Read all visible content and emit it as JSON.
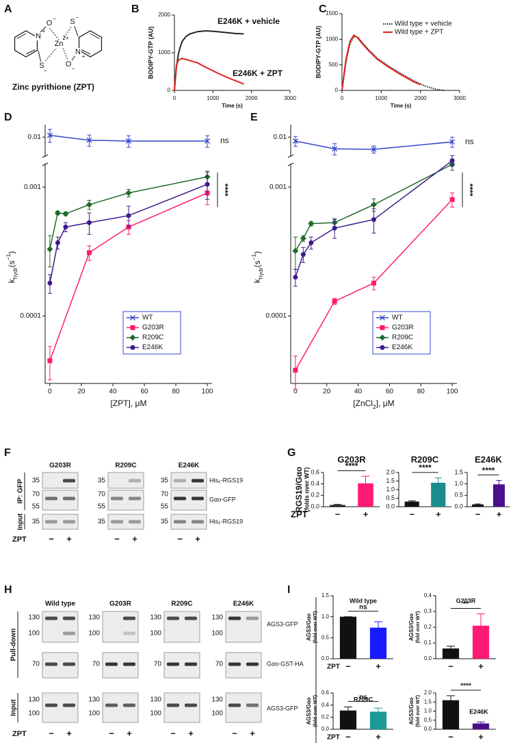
{
  "panel_labels": [
    "A",
    "B",
    "C",
    "D",
    "E",
    "F",
    "G",
    "H",
    "I"
  ],
  "structure": {
    "atoms": [
      {
        "symbol": "N",
        "charge": "+"
      },
      {
        "symbol": "O",
        "charge": "−"
      },
      {
        "symbol": "S",
        "charge": "−"
      },
      {
        "symbol": "Zn",
        "charge": "2+"
      },
      {
        "symbol": "S",
        "charge": "−"
      },
      {
        "symbol": "O",
        "charge": "−"
      },
      {
        "symbol": "N",
        "charge": "+"
      }
    ],
    "caption": "Zinc pyrithione (ZPT)"
  },
  "chart_data": [
    {
      "type": "line",
      "legend": "direct",
      "ylabel": "BODIPY-GTP (AU)",
      "xlabel": "Time (s)",
      "xlim": [
        0,
        3000
      ],
      "xticks": [
        0,
        1000,
        2000,
        3000
      ],
      "ylim": [
        0,
        2000
      ],
      "yticks": [
        0,
        1000,
        2000
      ],
      "label_color": "#5a1f6b",
      "series": [
        {
          "name": "E246K + vehicle",
          "color": "#222222",
          "x": [
            0,
            50,
            100,
            150,
            200,
            300,
            400,
            600,
            800,
            1000,
            1200,
            1400,
            1600,
            1800
          ],
          "values": [
            0,
            600,
            950,
            1150,
            1300,
            1430,
            1500,
            1560,
            1580,
            1570,
            1550,
            1530,
            1510,
            1500
          ]
        },
        {
          "name": "E246K + ZPT",
          "color": "#e0201b",
          "x": [
            0,
            50,
            100,
            200,
            300,
            400,
            600,
            800,
            1000,
            1200,
            1400,
            1600,
            1800
          ],
          "values": [
            0,
            650,
            800,
            850,
            820,
            790,
            730,
            620,
            520,
            420,
            330,
            250,
            170
          ]
        }
      ]
    },
    {
      "type": "line",
      "legend": "top-right",
      "ylabel": "BODIPY-GTP (AU)",
      "xlabel": "Time (s)",
      "xlim": [
        0,
        3000
      ],
      "xticks": [
        0,
        1000,
        2000,
        3000
      ],
      "ylim": [
        0,
        1500
      ],
      "yticks": [
        0,
        500,
        1000,
        1500
      ],
      "label_color": "#1a237e",
      "series": [
        {
          "name": "Wild type + vehicle",
          "color": "#222222",
          "style": "dotted",
          "x": [
            0,
            100,
            200,
            300,
            400,
            500,
            700,
            900,
            1200,
            1500,
            1800,
            2100,
            2400,
            2600
          ],
          "values": [
            0,
            550,
            900,
            1050,
            1050,
            950,
            780,
            630,
            470,
            330,
            200,
            90,
            20,
            0
          ]
        },
        {
          "name": "Wild type + ZPT",
          "color": "#e0201b",
          "x": [
            0,
            100,
            200,
            300,
            400,
            500,
            700,
            900,
            1200,
            1500,
            1800,
            2000
          ],
          "values": [
            0,
            600,
            950,
            1080,
            1030,
            930,
            760,
            610,
            450,
            310,
            180,
            110
          ]
        }
      ]
    },
    {
      "type": "line",
      "log_y": true,
      "axis_break": true,
      "legend": "center-right",
      "ylim": [
        3e-05,
        0.0015
      ],
      "ylim_upper": [
        0.006,
        0.014
      ],
      "yticks": [
        0.0001,
        0.001,
        0.01
      ],
      "xlim": [
        -3,
        103
      ],
      "xticks": [
        0,
        20,
        40,
        60,
        80,
        100
      ],
      "xlabel": "[ZPT], μM",
      "ylabel": [
        "k",
        "hydr",
        "(s",
        "−1",
        ")"
      ],
      "annotations": [
        "ns",
        "****"
      ],
      "series": [
        {
          "name": "WT",
          "color": "#3344cc",
          "marker": "x",
          "x": [
            0,
            25,
            50,
            100
          ],
          "values": [
            0.0105,
            0.0092,
            0.009,
            0.009
          ],
          "errors": [
            0.0018,
            0.0014,
            0.0014,
            0.0014
          ]
        },
        {
          "name": "G203R",
          "color": "#ff1a6b",
          "marker": "square",
          "x": [
            0,
            25,
            50,
            100
          ],
          "values": [
            4.5e-05,
            0.00031,
            0.00049,
            0.0009
          ],
          "errors": [
            1.3e-05,
            4e-05,
            6e-05,
            0.00017
          ]
        },
        {
          "name": "R209C",
          "color": "#1f6b2a",
          "marker": "diamond",
          "x": [
            0,
            5,
            10,
            25,
            50,
            100
          ],
          "values": [
            0.00033,
            0.00063,
            0.00062,
            0.00073,
            0.0009,
            0.0012
          ],
          "errors": [
            9e-05,
            2e-05,
            2e-05,
            6e-05,
            6e-05,
            0.00013
          ]
        },
        {
          "name": "E246K",
          "color": "#3d1a8c",
          "marker": "circle",
          "x": [
            0,
            5,
            10,
            25,
            50,
            100
          ],
          "values": [
            0.00018,
            0.00037,
            0.00049,
            0.00053,
            0.0006,
            0.00105
          ],
          "errors": [
            3e-05,
            4e-05,
            4e-05,
            0.0001,
            0.00011,
            0.00025
          ]
        }
      ]
    },
    {
      "type": "line",
      "log_y": true,
      "axis_break": true,
      "legend": "center-right",
      "ylim": [
        3e-05,
        0.0015
      ],
      "ylim_upper": [
        0.006,
        0.014
      ],
      "yticks": [
        0.0001,
        0.001,
        0.01
      ],
      "xlim": [
        -3,
        103
      ],
      "xticks": [
        0,
        20,
        40,
        60,
        80,
        100
      ],
      "xlabel": [
        "[ZnCl",
        "2",
        "], μM"
      ],
      "ylabel": [
        "k",
        "hydr",
        "(s",
        "−1",
        ")"
      ],
      "annotations": [
        "ns",
        "****"
      ],
      "series": [
        {
          "name": "WT",
          "color": "#3344cc",
          "marker": "x",
          "x": [
            0,
            25,
            50,
            100
          ],
          "values": [
            0.009,
            0.0073,
            0.0072,
            0.0088
          ],
          "errors": [
            0.0012,
            0.0011,
            0.0007,
            0.0012
          ]
        },
        {
          "name": "G203R",
          "color": "#ff1a6b",
          "marker": "square",
          "x": [
            0,
            25,
            50,
            100
          ],
          "values": [
            3.8e-05,
            0.00013,
            0.00018,
            0.0008
          ],
          "errors": [
            1.1e-05,
            7e-06,
            2e-05,
            0.0001
          ]
        },
        {
          "name": "R209C",
          "color": "#1f6b2a",
          "marker": "diamond",
          "x": [
            0,
            5,
            10,
            25,
            50,
            100
          ],
          "values": [
            0.00032,
            0.0004,
            0.00052,
            0.00053,
            0.00073,
            0.0015
          ],
          "errors": [
            9e-05,
            2e-05,
            2e-05,
            4e-05,
            8e-05,
            0.00015
          ]
        },
        {
          "name": "E246K",
          "color": "#3d1a8c",
          "marker": "circle",
          "x": [
            0,
            5,
            10,
            25,
            50,
            100
          ],
          "values": [
            0.0002,
            0.0003,
            0.00037,
            0.00048,
            0.00056,
            0.0016
          ],
          "errors": [
            3e-05,
            4e-05,
            4e-05,
            8e-05,
            0.00012,
            0.00015
          ]
        }
      ]
    },
    {
      "type": "bar",
      "title": "G203R",
      "categories": [
        "−",
        "+"
      ],
      "values": [
        0.03,
        0.41
      ],
      "errors": [
        0.012,
        0.125
      ],
      "colors": [
        "#111111",
        "#ff1a75"
      ],
      "ylim": [
        0,
        0.6
      ],
      "yticks": [
        {
          "value": 0,
          "label": "0.0"
        },
        0.2,
        0.4,
        0.6
      ],
      "significance": "****"
    },
    {
      "type": "bar",
      "title": "R209C",
      "categories": [
        "−",
        "+"
      ],
      "values": [
        0.3,
        1.4
      ],
      "errors": [
        0.04,
        0.28
      ],
      "colors": [
        "#111111",
        "#1a8c8c"
      ],
      "ylim": [
        0,
        2
      ],
      "yticks": [
        {
          "value": 0,
          "label": "0.0"
        },
        0.5,
        {
          "value": 1,
          "label": "1.0"
        },
        1.5,
        {
          "value": 2,
          "label": "2.0"
        }
      ],
      "significance": "****"
    },
    {
      "type": "bar",
      "title": "E246K",
      "categories": [
        "−",
        "+"
      ],
      "values": [
        0.1,
        0.98
      ],
      "errors": [
        0.02,
        0.17
      ],
      "colors": [
        "#111111",
        "#4b0f8c"
      ],
      "ylim": [
        0,
        1.5
      ],
      "yticks": [
        {
          "value": 0,
          "label": "0.0"
        },
        0.5,
        {
          "value": 1,
          "label": "1.0"
        },
        1.5
      ],
      "significance": "****"
    },
    {
      "type": "bar",
      "title": "Wild type",
      "categories": [
        "−",
        "+"
      ],
      "values": [
        1.0,
        0.74
      ],
      "errors": [
        0,
        0.14
      ],
      "colors": [
        "#111111",
        "#1a1aff"
      ],
      "ylim": [
        0,
        1.5
      ],
      "yticks": [
        {
          "value": 0,
          "label": "0.0"
        },
        0.5,
        {
          "value": 1,
          "label": "1.0"
        },
        1.5
      ],
      "significance": "ns"
    },
    {
      "type": "bar",
      "title": "G203R",
      "categories": [
        "−",
        "+"
      ],
      "values": [
        0.065,
        0.21
      ],
      "errors": [
        0.015,
        0.075
      ],
      "colors": [
        "#111111",
        "#ff1a75"
      ],
      "ylim": [
        0,
        0.4
      ],
      "yticks": [
        {
          "value": 0,
          "label": "0.0"
        },
        0.1,
        0.2,
        0.3,
        0.4
      ],
      "significance": "**"
    },
    {
      "type": "bar",
      "title": "R209C",
      "categories": [
        "−",
        "+"
      ],
      "values": [
        0.31,
        0.29
      ],
      "errors": [
        0.06,
        0.06
      ],
      "colors": [
        "#111111",
        "#1a9999"
      ],
      "ylim": [
        0,
        0.6
      ],
      "yticks": [
        {
          "value": 0,
          "label": "0.0"
        },
        0.2,
        0.4,
        0.6
      ],
      "significance": "ns"
    },
    {
      "type": "bar",
      "title": "E246K",
      "categories": [
        "−",
        "+"
      ],
      "values": [
        1.6,
        0.32
      ],
      "errors": [
        0.25,
        0.08
      ],
      "colors": [
        "#111111",
        "#4a0d8a"
      ],
      "ylim": [
        0,
        2
      ],
      "yticks": [
        {
          "value": 0,
          "label": "0.0"
        },
        0.5,
        {
          "value": 1,
          "label": "1.0"
        },
        1.5,
        {
          "value": 2,
          "label": "2.0"
        }
      ],
      "significance": "****"
    }
  ],
  "panel_G": {
    "ylabel": [
      "RGS19/Gαo",
      "(folds over WT)"
    ],
    "xlabel": "ZPT"
  },
  "panel_I": {
    "ylabel": [
      "AGS3/Gαo",
      "(fold over WT)"
    ],
    "xlabel": "ZPT"
  },
  "blot_F": {
    "groups": [
      "IP: GFP",
      "Input"
    ],
    "columns": [
      {
        "title": "G203R",
        "markers": [
          35,
          70,
          55,
          35
        ]
      },
      {
        "title": "R209C",
        "markers": [
          35,
          70,
          55,
          35
        ]
      },
      {
        "title": "E246K",
        "markers": [
          35,
          70,
          55,
          35
        ]
      }
    ],
    "bands": [
      "His₆-RGS19",
      "Gαo-GFP",
      "His₆-RGS19"
    ],
    "treatment": "ZPT",
    "lanes": [
      "−",
      "+"
    ]
  },
  "blot_H": {
    "groups": [
      "Pull-down",
      "Input"
    ],
    "columns": [
      {
        "title": "Wild type",
        "markers": [
          130,
          100,
          70,
          130,
          100
        ]
      },
      {
        "title": "G203R",
        "markers": [
          130,
          100,
          70,
          130,
          100
        ]
      },
      {
        "title": "R209C",
        "markers": [
          130,
          100,
          70,
          130,
          100
        ]
      },
      {
        "title": "E246K",
        "markers": [
          130,
          100,
          70,
          130,
          100
        ]
      }
    ],
    "bands": [
      "AGS3-GFP",
      "Gαo-GST-HA",
      "AGS3-GFP"
    ],
    "treatment": "ZPT",
    "lanes": [
      "−",
      "+"
    ]
  }
}
